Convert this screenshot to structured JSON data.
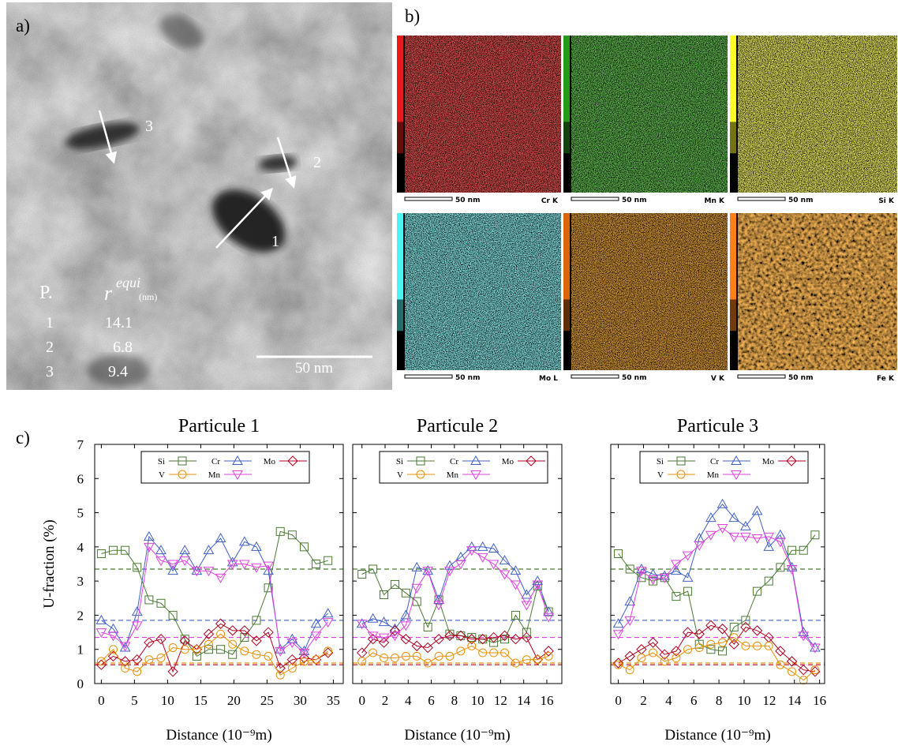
{
  "panel_labels": [
    "a)",
    "b)",
    "c)"
  ],
  "tem": {
    "particle_labels": [
      "3",
      "2",
      "1"
    ],
    "table": {
      "header": {
        "p": "P.",
        "r": "r",
        "sup": "equi",
        "unit": "(nm)"
      },
      "rows": [
        [
          "1",
          "14.1"
        ],
        [
          "2",
          "6.8"
        ],
        [
          "3",
          "9.4"
        ]
      ]
    },
    "scale": "50 nm"
  },
  "maps": [
    {
      "scale": "50 nm",
      "label": "Cr K"
    },
    {
      "scale": "50 nm",
      "label": "Mn K"
    },
    {
      "scale": "50 nm",
      "label": "Si K"
    },
    {
      "scale": "50 nm",
      "label": "Mo L"
    },
    {
      "scale": "50 nm",
      "label": "V K"
    },
    {
      "scale": "50 nm",
      "label": "Fe K"
    }
  ],
  "chart_data": [
    {
      "type": "line",
      "title": "Particule 1",
      "xlabel": "Distance (10⁻⁹m)",
      "ylabel": "U-fraction (%)",
      "x": [
        0,
        1.8,
        3.6,
        5.4,
        7.2,
        9,
        10.8,
        12.6,
        14.4,
        16.2,
        18,
        19.8,
        21.6,
        23.4,
        25.2,
        27,
        28.8,
        30.6,
        32.4,
        34.2
      ],
      "xlim": [
        -1,
        36.5
      ],
      "xticks": [
        0,
        5,
        10,
        15,
        20,
        25,
        30,
        35
      ],
      "ylim": [
        0,
        7
      ],
      "yticks": [
        0,
        1,
        2,
        3,
        4,
        5,
        6,
        7
      ],
      "ytick_labels": true,
      "legend": "top",
      "series": [
        {
          "name": "Si",
          "color": "#4a7a32",
          "marker": "square",
          "level": 3.35,
          "values": [
            3.8,
            3.9,
            3.9,
            3.4,
            2.45,
            2.35,
            2.0,
            1.3,
            0.8,
            1.0,
            1.0,
            0.85,
            1.35,
            1.85,
            2.8,
            4.45,
            4.35,
            4.0,
            3.5,
            3.6
          ]
        },
        {
          "name": "Cr",
          "color": "#4060c8",
          "marker": "triangle-up",
          "level": 1.85,
          "values": [
            1.85,
            1.6,
            1.05,
            2.1,
            4.3,
            3.9,
            3.3,
            3.9,
            3.3,
            3.9,
            4.25,
            3.55,
            4.15,
            4.0,
            3.3,
            1.0,
            1.3,
            0.95,
            1.75,
            2.05
          ]
        },
        {
          "name": "Mo",
          "color": "#b00020",
          "marker": "diamond",
          "level": 0.55,
          "values": [
            0.55,
            0.8,
            0.65,
            0.7,
            1.2,
            1.3,
            0.35,
            1.25,
            1.0,
            1.45,
            1.75,
            1.55,
            1.55,
            1.25,
            1.5,
            0.45,
            0.7,
            0.75,
            0.7,
            0.9
          ]
        },
        {
          "name": "V",
          "color": "#e8900a",
          "marker": "circle",
          "level": 0.6,
          "values": [
            0.65,
            1.0,
            0.45,
            0.35,
            0.7,
            0.75,
            1.05,
            1.0,
            1.0,
            1.15,
            1.45,
            1.15,
            0.95,
            0.85,
            0.8,
            0.25,
            0.45,
            0.65,
            0.7,
            0.95
          ]
        },
        {
          "name": "Mn",
          "color": "#e040e0",
          "marker": "triangle-down",
          "level": 1.35,
          "values": [
            1.5,
            1.4,
            1.1,
            1.7,
            4.0,
            3.6,
            3.5,
            3.6,
            3.3,
            3.3,
            3.1,
            3.5,
            3.5,
            3.4,
            3.45,
            0.95,
            1.2,
            0.9,
            1.4,
            1.8
          ]
        }
      ]
    },
    {
      "type": "line",
      "title": "Particule 2",
      "xlabel": "Distance (10⁻⁹m)",
      "x": [
        0,
        0.95,
        1.9,
        2.85,
        3.8,
        4.75,
        5.7,
        6.65,
        7.6,
        8.55,
        9.5,
        10.45,
        11.4,
        12.35,
        13.3,
        14.25,
        15.2,
        16.15
      ],
      "xlim": [
        -0.8,
        17.3
      ],
      "xticks": [
        0,
        2,
        4,
        6,
        8,
        10,
        12,
        14,
        16
      ],
      "ylim": [
        0,
        7
      ],
      "yticks": [
        0,
        1,
        2,
        3,
        4,
        5,
        6,
        7
      ],
      "ytick_labels": false,
      "legend": "top",
      "series": [
        {
          "name": "Si",
          "color": "#4a7a32",
          "marker": "square",
          "level": 3.35,
          "values": [
            3.2,
            3.35,
            2.6,
            2.9,
            2.65,
            2.4,
            1.65,
            2.45,
            1.45,
            1.4,
            1.35,
            1.3,
            1.2,
            1.3,
            2.0,
            1.5,
            2.85,
            2.1
          ]
        },
        {
          "name": "Cr",
          "color": "#4060c8",
          "marker": "triangle-up",
          "level": 1.85,
          "values": [
            1.75,
            1.9,
            1.8,
            1.6,
            2.0,
            3.4,
            3.3,
            2.45,
            3.45,
            3.7,
            4.0,
            4.0,
            3.95,
            3.6,
            3.3,
            2.6,
            3.0,
            2.1
          ]
        },
        {
          "name": "Mo",
          "color": "#b00020",
          "marker": "diamond",
          "level": 0.55,
          "values": [
            0.9,
            1.3,
            1.2,
            1.55,
            1.3,
            1.1,
            1.05,
            1.3,
            1.4,
            1.4,
            1.3,
            1.3,
            1.35,
            1.4,
            1.3,
            1.35,
            0.7,
            0.95
          ]
        },
        {
          "name": "V",
          "color": "#e8900a",
          "marker": "circle",
          "level": 0.6,
          "values": [
            0.65,
            0.9,
            0.75,
            0.75,
            0.8,
            0.8,
            0.6,
            0.8,
            0.8,
            0.95,
            1.1,
            0.9,
            0.9,
            0.9,
            0.6,
            0.7,
            0.7,
            0.8
          ]
        },
        {
          "name": "Mn",
          "color": "#e040e0",
          "marker": "triangle-down",
          "level": 1.35,
          "values": [
            1.75,
            1.4,
            1.35,
            1.4,
            1.7,
            2.8,
            3.3,
            2.3,
            3.3,
            3.5,
            3.9,
            3.7,
            3.5,
            3.2,
            2.9,
            2.3,
            2.9,
            1.95
          ]
        }
      ]
    },
    {
      "type": "line",
      "title": "Particule 3",
      "xlabel": "Distance (10⁻⁹m)",
      "x": [
        0,
        0.92,
        1.84,
        2.76,
        3.68,
        4.6,
        5.52,
        6.44,
        7.36,
        8.28,
        9.2,
        10.12,
        11.04,
        11.96,
        12.88,
        13.8,
        14.72,
        15.64
      ],
      "xlim": [
        -0.6,
        16.4
      ],
      "xticks": [
        0,
        2,
        4,
        6,
        8,
        10,
        12,
        14,
        16
      ],
      "ylim": [
        0,
        7
      ],
      "yticks": [
        0,
        1,
        2,
        3,
        4,
        5,
        6,
        7
      ],
      "ytick_labels": false,
      "legend": "top",
      "series": [
        {
          "name": "Si",
          "color": "#4a7a32",
          "marker": "square",
          "level": 3.35,
          "values": [
            3.8,
            3.35,
            3.1,
            3.0,
            3.1,
            2.55,
            2.7,
            1.15,
            1.0,
            0.95,
            1.65,
            1.85,
            2.7,
            3.0,
            3.4,
            3.9,
            3.9,
            4.35
          ]
        },
        {
          "name": "Cr",
          "color": "#4060c8",
          "marker": "triangle-up",
          "level": 1.85,
          "values": [
            1.75,
            2.4,
            3.35,
            3.2,
            3.15,
            3.3,
            3.1,
            4.25,
            4.85,
            5.25,
            4.85,
            4.6,
            5.05,
            4.0,
            4.35,
            3.4,
            1.5,
            1.05
          ]
        },
        {
          "name": "Mo",
          "color": "#b00020",
          "marker": "diamond",
          "level": 0.55,
          "values": [
            0.6,
            0.8,
            1.0,
            1.2,
            0.85,
            0.95,
            1.5,
            1.45,
            1.7,
            1.6,
            1.15,
            1.65,
            1.55,
            1.35,
            0.95,
            0.65,
            0.4,
            0.35
          ]
        },
        {
          "name": "V",
          "color": "#e8900a",
          "marker": "circle",
          "level": 0.6,
          "values": [
            0.55,
            0.4,
            0.75,
            0.9,
            0.65,
            0.75,
            1.0,
            1.05,
            1.15,
            1.2,
            1.35,
            1.1,
            1.1,
            1.1,
            0.55,
            0.35,
            0.1,
            0.4
          ]
        },
        {
          "name": "Mn",
          "color": "#e040e0",
          "marker": "triangle-down",
          "level": 1.35,
          "values": [
            1.45,
            1.85,
            3.3,
            3.05,
            3.1,
            3.5,
            3.75,
            4.05,
            4.35,
            4.55,
            4.3,
            4.3,
            4.25,
            4.3,
            4.15,
            3.35,
            1.4,
            1.05
          ]
        }
      ]
    }
  ]
}
